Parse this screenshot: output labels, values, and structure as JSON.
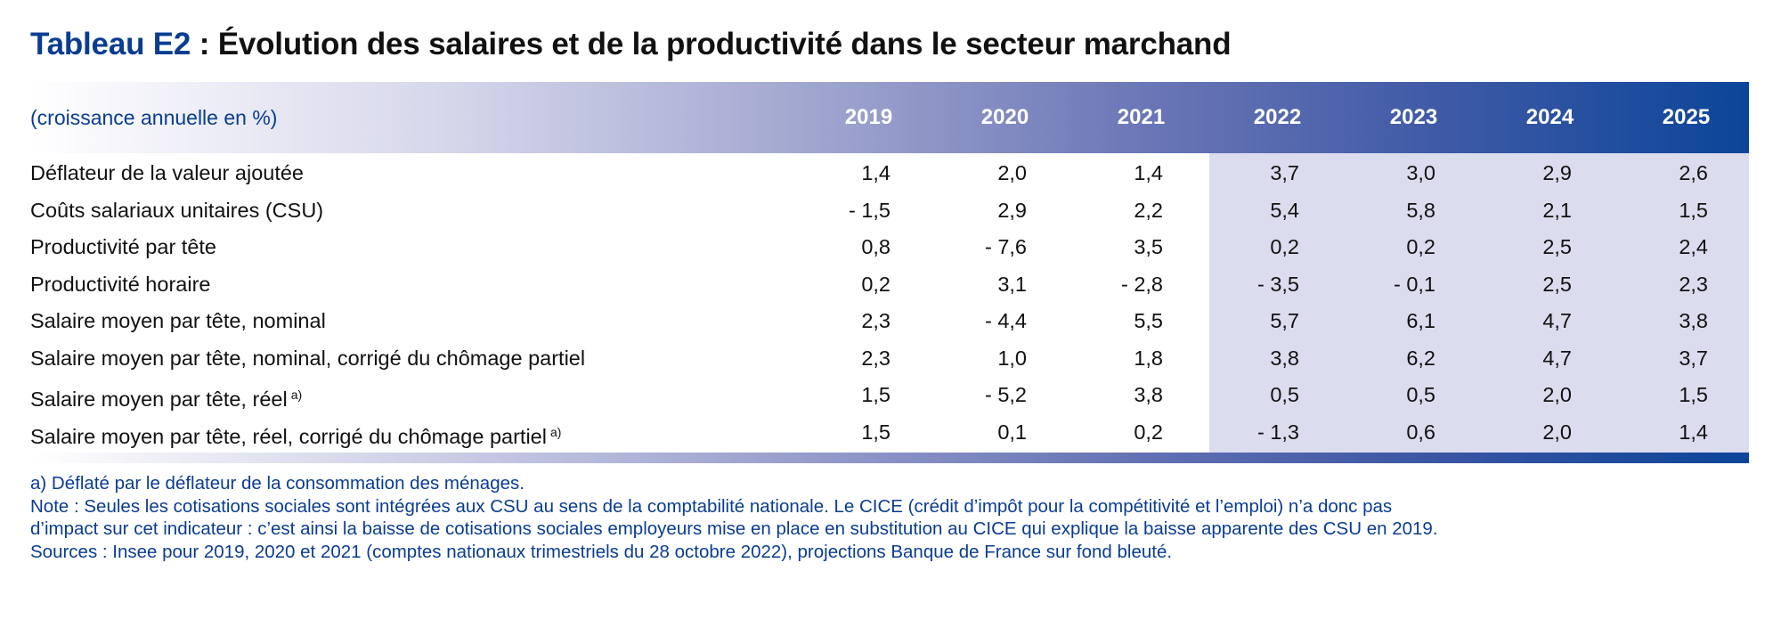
{
  "title": {
    "tag": "Tableau E2",
    "text": " : Évolution des salaires et de la productivité dans le secteur marchand"
  },
  "table": {
    "unit": "(croissance annuelle en %)",
    "years": [
      "2019",
      "2020",
      "2021",
      "2022",
      "2023",
      "2024",
      "2025"
    ],
    "projection_years": [
      "2022",
      "2023",
      "2024",
      "2025"
    ],
    "projection_shade_color": "#dcdcef",
    "header_color": "#0b4599",
    "rows": [
      {
        "label": "Déflateur de la valeur ajoutée",
        "note": "",
        "values": [
          "1,4",
          "2,0",
          "1,4",
          "3,7",
          "3,0",
          "2,9",
          "2,6"
        ]
      },
      {
        "label": "Coûts salariaux unitaires (CSU)",
        "note": "",
        "values": [
          "- 1,5",
          "2,9",
          "2,2",
          "5,4",
          "5,8",
          "2,1",
          "1,5"
        ]
      },
      {
        "label": "Productivité par tête",
        "note": "",
        "values": [
          "0,8",
          "- 7,6",
          "3,5",
          "0,2",
          "0,2",
          "2,5",
          "2,4"
        ]
      },
      {
        "label": "Productivité horaire",
        "note": "",
        "values": [
          "0,2",
          "3,1",
          "- 2,8",
          "- 3,5",
          "- 0,1",
          "2,5",
          "2,3"
        ]
      },
      {
        "label": "Salaire moyen par tête, nominal",
        "note": "",
        "values": [
          "2,3",
          "- 4,4",
          "5,5",
          "5,7",
          "6,1",
          "4,7",
          "3,8"
        ]
      },
      {
        "label": "Salaire moyen par tête, nominal, corrigé du chômage partiel",
        "note": "",
        "values": [
          "2,3",
          "1,0",
          "1,8",
          "3,8",
          "6,2",
          "4,7",
          "3,7"
        ]
      },
      {
        "label": "Salaire moyen par tête, réel",
        "note": "a)",
        "values": [
          "1,5",
          "- 5,2",
          "3,8",
          "0,5",
          "0,5",
          "2,0",
          "1,5"
        ]
      },
      {
        "label": "Salaire moyen par tête, réel, corrigé du chômage partiel",
        "note": "a)",
        "values": [
          "1,5",
          "0,1",
          "0,2",
          "- 1,3",
          "0,6",
          "2,0",
          "1,4"
        ]
      }
    ]
  },
  "notes": [
    "a)  Déflaté par le déflateur de la consommation des ménages.",
    "Note : Seules les cotisations sociales sont intégrées aux CSU au sens de la comptabilité nationale. Le CICE (crédit d’impôt pour la compétitivité et l’emploi) n’a donc pas",
    "d’impact sur cet indicateur : c’est ainsi la baisse de cotisations sociales employeurs mise en place en substitution au CICE qui explique la baisse apparente des CSU en 2019.",
    "Sources : Insee pour 2019, 2020 et 2021 (comptes nationaux trimestriels du 28 octobre 2022), projections Banque de France sur fond bleuté."
  ]
}
